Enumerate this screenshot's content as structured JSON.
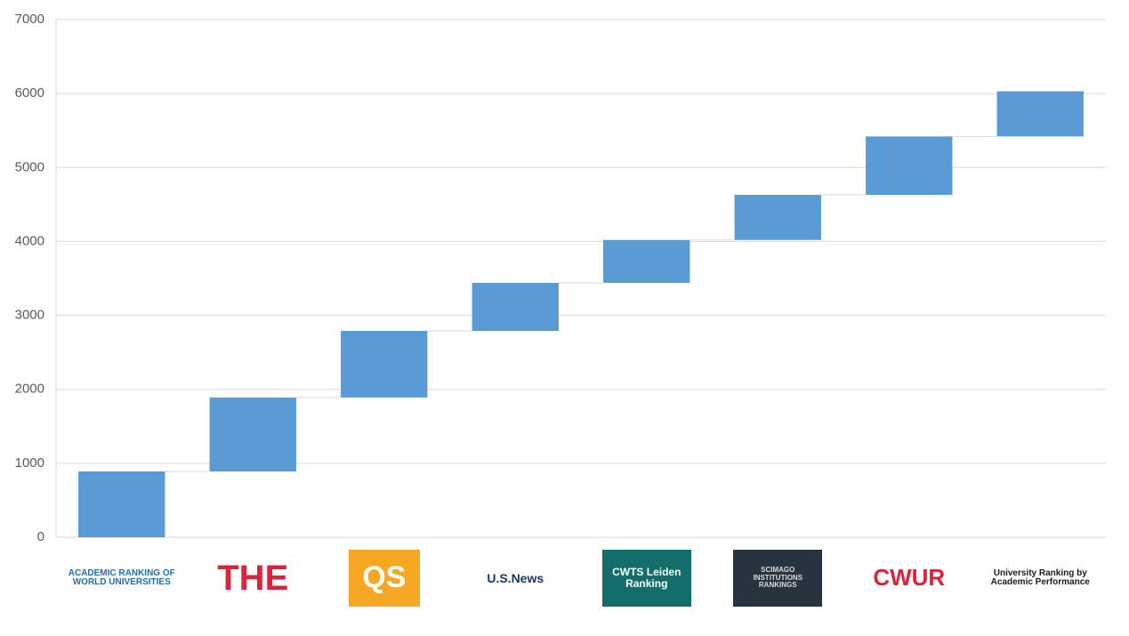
{
  "chart_data": {
    "type": "waterfall",
    "categories": [
      "ACADEMIC RANKING OF WORLD UNIVERSITIES",
      "THE",
      "QS",
      "U.S.News",
      "CWTS Leiden Ranking",
      "SCIMAGO INSTITUTIONS RANKINGS",
      "CWUR",
      "University Ranking by Academic Performance"
    ],
    "values": [
      890,
      1000,
      900,
      650,
      580,
      610,
      790,
      610
    ],
    "color": "#5b9bd5",
    "ylim": [
      0,
      7000
    ],
    "yticks": [
      0,
      1000,
      2000,
      3000,
      4000,
      5000,
      6000,
      7000
    ],
    "grid": true
  }
}
